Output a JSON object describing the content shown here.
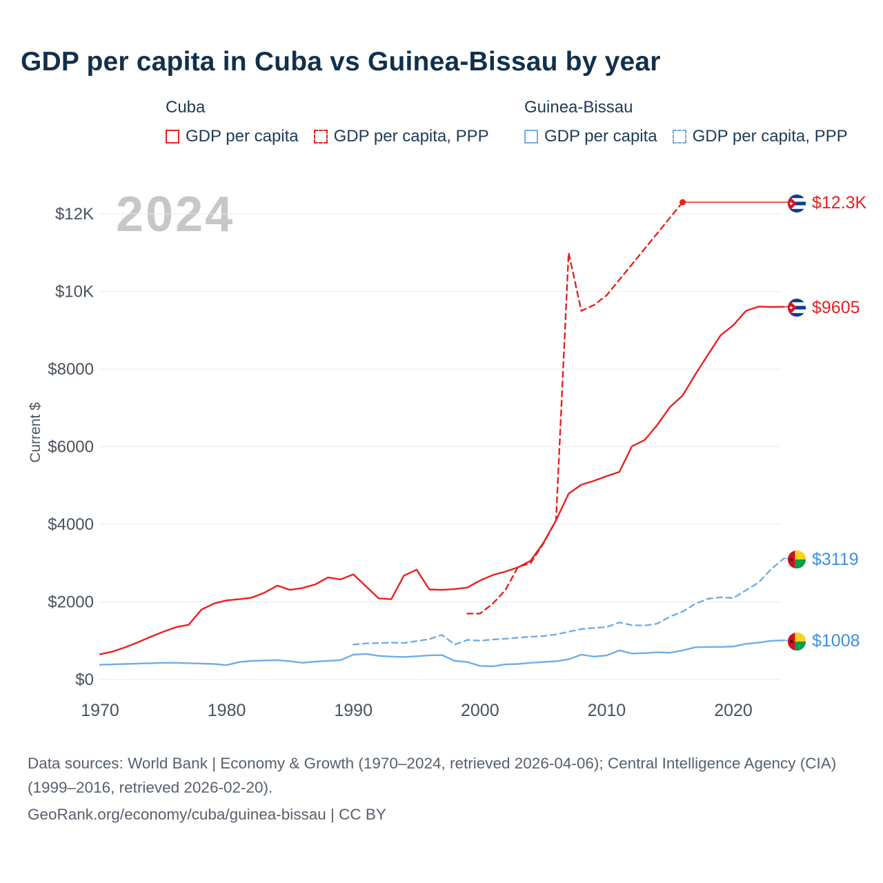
{
  "title": "GDP per capita in Cuba vs Guinea-Bissau by year",
  "watermark": "2024",
  "legend": {
    "groups": [
      {
        "name": "Cuba",
        "items": [
          {
            "label": "GDP per capita",
            "style": "solid",
            "color": "#e8201e"
          },
          {
            "label": "GDP per capita, PPP",
            "style": "dashed",
            "color": "#e8201e"
          }
        ]
      },
      {
        "name": "Guinea-Bissau",
        "items": [
          {
            "label": "GDP per capita",
            "style": "solid",
            "color": "#6fade3"
          },
          {
            "label": "GDP per capita, PPP",
            "style": "dashed",
            "color": "#6fade3"
          }
        ]
      }
    ]
  },
  "axes": {
    "ylabel": "Current $"
  },
  "end_labels": [
    {
      "label": "$12.3K",
      "value": 12300,
      "flag": "cuba",
      "color": "#e8201e",
      "series": "Cuba GDP per capita, PPP"
    },
    {
      "label": "$9605",
      "value": 9605,
      "flag": "cuba",
      "color": "#e8201e",
      "series": "Cuba GDP per capita"
    },
    {
      "label": "$3119",
      "value": 3119,
      "flag": "guinea-bissau",
      "color": "#3e90d8",
      "series": "Guinea-Bissau GDP per capita, PPP"
    },
    {
      "label": "$1008",
      "value": 1008,
      "flag": "guinea-bissau",
      "color": "#3e90d8",
      "series": "Guinea-Bissau GDP per capita"
    }
  ],
  "footer": {
    "line1": "Data sources: World Bank | Economy & Growth (1970–2024, retrieved 2026-04-06); Central Intelligence Agency (CIA) (1999–2016, retrieved 2026-02-20).",
    "line2": "GeoRank.org/economy/cuba/guinea-bissau | CC BY"
  },
  "chart_data": {
    "type": "line",
    "title": "GDP per capita in Cuba vs Guinea-Bissau by year",
    "xlabel": "",
    "ylabel": "Current $",
    "xlim": [
      1969,
      2025
    ],
    "ylim": [
      0,
      12600
    ],
    "grid": "horizontal",
    "legend_position": "top",
    "yticks": [
      {
        "value": 0,
        "label": "$0"
      },
      {
        "value": 2000,
        "label": "$2000"
      },
      {
        "value": 4000,
        "label": "$4000"
      },
      {
        "value": 6000,
        "label": "$6000"
      },
      {
        "value": 8000,
        "label": "$8000"
      },
      {
        "value": 10000,
        "label": "$10K"
      },
      {
        "value": 12000,
        "label": "$12K"
      }
    ],
    "xticks": [
      1970,
      1980,
      1990,
      2000,
      2010,
      2020
    ],
    "series": [
      {
        "name": "Cuba — GDP per capita",
        "color": "#e8201e",
        "line": "solid",
        "end_dot": false,
        "points": [
          [
            1970,
            650
          ],
          [
            1971,
            720
          ],
          [
            1972,
            830
          ],
          [
            1973,
            960
          ],
          [
            1974,
            1100
          ],
          [
            1975,
            1230
          ],
          [
            1976,
            1350
          ],
          [
            1977,
            1410
          ],
          [
            1978,
            1800
          ],
          [
            1979,
            1960
          ],
          [
            1980,
            2040
          ],
          [
            1981,
            2070
          ],
          [
            1982,
            2110
          ],
          [
            1983,
            2240
          ],
          [
            1984,
            2420
          ],
          [
            1985,
            2310
          ],
          [
            1986,
            2360
          ],
          [
            1987,
            2450
          ],
          [
            1988,
            2630
          ],
          [
            1989,
            2580
          ],
          [
            1990,
            2710
          ],
          [
            1991,
            2400
          ],
          [
            1992,
            2090
          ],
          [
            1993,
            2070
          ],
          [
            1994,
            2680
          ],
          [
            1995,
            2830
          ],
          [
            1996,
            2320
          ],
          [
            1997,
            2310
          ],
          [
            1998,
            2330
          ],
          [
            1999,
            2370
          ],
          [
            2000,
            2550
          ],
          [
            2001,
            2690
          ],
          [
            2002,
            2780
          ],
          [
            2003,
            2890
          ],
          [
            2004,
            3060
          ],
          [
            2005,
            3520
          ],
          [
            2006,
            4100
          ],
          [
            2007,
            4790
          ],
          [
            2008,
            5020
          ],
          [
            2009,
            5120
          ],
          [
            2010,
            5240
          ],
          [
            2011,
            5350
          ],
          [
            2012,
            6010
          ],
          [
            2013,
            6170
          ],
          [
            2014,
            6560
          ],
          [
            2015,
            7020
          ],
          [
            2016,
            7320
          ],
          [
            2017,
            7860
          ],
          [
            2018,
            8370
          ],
          [
            2019,
            8870
          ],
          [
            2020,
            9130
          ],
          [
            2021,
            9500
          ],
          [
            2022,
            9610
          ],
          [
            2023,
            9600
          ],
          [
            2024,
            9605
          ]
        ]
      },
      {
        "name": "Cuba — GDP per capita, PPP",
        "color": "#e8201e",
        "line": "dashed",
        "end_dot": true,
        "points": [
          [
            1999,
            1700
          ],
          [
            2000,
            1700
          ],
          [
            2001,
            1950
          ],
          [
            2002,
            2300
          ],
          [
            2003,
            2900
          ],
          [
            2004,
            3000
          ],
          [
            2005,
            3500
          ],
          [
            2006,
            4100
          ],
          [
            2007,
            11000
          ],
          [
            2008,
            9500
          ],
          [
            2009,
            9650
          ],
          [
            2010,
            9900
          ],
          [
            2016,
            12300
          ]
        ]
      },
      {
        "name": "Guinea-Bissau — GDP per capita",
        "color": "#6fade3",
        "line": "solid",
        "end_dot": false,
        "points": [
          [
            1970,
            380
          ],
          [
            1971,
            390
          ],
          [
            1972,
            400
          ],
          [
            1973,
            410
          ],
          [
            1974,
            420
          ],
          [
            1975,
            430
          ],
          [
            1976,
            430
          ],
          [
            1977,
            420
          ],
          [
            1978,
            410
          ],
          [
            1979,
            400
          ],
          [
            1980,
            370
          ],
          [
            1981,
            450
          ],
          [
            1982,
            480
          ],
          [
            1983,
            490
          ],
          [
            1984,
            500
          ],
          [
            1985,
            470
          ],
          [
            1986,
            430
          ],
          [
            1987,
            460
          ],
          [
            1988,
            480
          ],
          [
            1989,
            500
          ],
          [
            1990,
            640
          ],
          [
            1991,
            660
          ],
          [
            1992,
            610
          ],
          [
            1993,
            590
          ],
          [
            1994,
            580
          ],
          [
            1995,
            600
          ],
          [
            1996,
            620
          ],
          [
            1997,
            630
          ],
          [
            1998,
            480
          ],
          [
            1999,
            450
          ],
          [
            2000,
            350
          ],
          [
            2001,
            340
          ],
          [
            2002,
            390
          ],
          [
            2003,
            400
          ],
          [
            2004,
            430
          ],
          [
            2005,
            450
          ],
          [
            2006,
            470
          ],
          [
            2007,
            520
          ],
          [
            2008,
            640
          ],
          [
            2009,
            590
          ],
          [
            2010,
            620
          ],
          [
            2011,
            750
          ],
          [
            2012,
            670
          ],
          [
            2013,
            680
          ],
          [
            2014,
            700
          ],
          [
            2015,
            690
          ],
          [
            2016,
            750
          ],
          [
            2017,
            830
          ],
          [
            2018,
            840
          ],
          [
            2019,
            840
          ],
          [
            2020,
            850
          ],
          [
            2021,
            920
          ],
          [
            2022,
            950
          ],
          [
            2023,
            1000
          ],
          [
            2024,
            1008
          ]
        ]
      },
      {
        "name": "Guinea-Bissau — GDP per capita, PPP",
        "color": "#6fade3",
        "line": "dashed",
        "end_dot": false,
        "points": [
          [
            1990,
            900
          ],
          [
            1991,
            930
          ],
          [
            1992,
            940
          ],
          [
            1993,
            950
          ],
          [
            1994,
            940
          ],
          [
            1995,
            990
          ],
          [
            1996,
            1040
          ],
          [
            1997,
            1150
          ],
          [
            1998,
            900
          ],
          [
            1999,
            1020
          ],
          [
            2000,
            1000
          ],
          [
            2001,
            1030
          ],
          [
            2002,
            1050
          ],
          [
            2003,
            1080
          ],
          [
            2004,
            1100
          ],
          [
            2005,
            1120
          ],
          [
            2006,
            1160
          ],
          [
            2007,
            1230
          ],
          [
            2008,
            1300
          ],
          [
            2009,
            1330
          ],
          [
            2010,
            1350
          ],
          [
            2011,
            1470
          ],
          [
            2012,
            1400
          ],
          [
            2013,
            1390
          ],
          [
            2014,
            1440
          ],
          [
            2015,
            1620
          ],
          [
            2016,
            1750
          ],
          [
            2017,
            1950
          ],
          [
            2018,
            2080
          ],
          [
            2019,
            2120
          ],
          [
            2020,
            2100
          ],
          [
            2021,
            2300
          ],
          [
            2022,
            2500
          ],
          [
            2023,
            2850
          ],
          [
            2024,
            3119
          ]
        ]
      }
    ]
  }
}
